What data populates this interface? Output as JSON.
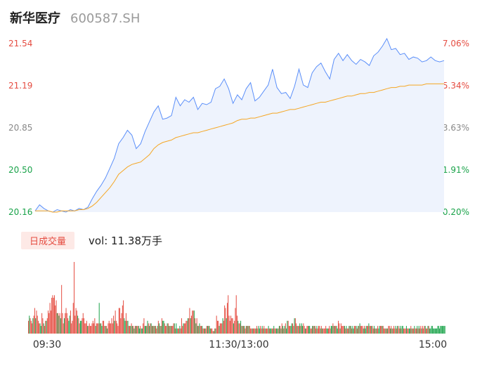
{
  "header": {
    "name": "新华医疗",
    "code": "600587.SH"
  },
  "volume_panel": {
    "tag": "日成交量",
    "label": "vol: 11.38万手"
  },
  "colors": {
    "up": "#e54d42",
    "down": "#1aa34a",
    "price_line": "#5b8ff9",
    "avg_line": "#f5a623",
    "fill": "#eef3fd"
  },
  "chart_data": [
    {
      "type": "line",
      "price_ticks": [
        "21.54",
        "21.19",
        "20.85",
        "20.50",
        "20.16"
      ],
      "pct_ticks": [
        "7.06%",
        "5.34%",
        "3.63%",
        "1.91%",
        "0.20%"
      ],
      "ylim": [
        20.16,
        21.54
      ],
      "x_ticks": [
        "09:30",
        "11:30/13:00",
        "15:00"
      ],
      "series": [
        {
          "values": [
            20.17,
            20.22,
            20.19,
            20.17,
            20.16,
            20.18,
            20.17,
            20.16,
            20.18,
            20.17,
            20.19,
            20.18,
            20.2,
            20.27,
            20.33,
            20.38,
            20.44,
            20.52,
            20.6,
            20.72,
            20.77,
            20.83,
            20.79,
            20.68,
            20.72,
            20.82,
            20.9,
            20.98,
            21.03,
            20.92,
            20.93,
            20.95,
            21.1,
            21.03,
            21.08,
            21.06,
            21.1,
            21.0,
            21.05,
            21.04,
            21.06,
            21.17,
            21.19,
            21.25,
            21.17,
            21.05,
            21.12,
            21.08,
            21.17,
            21.22,
            21.07,
            21.1,
            21.15,
            21.2,
            21.33,
            21.18,
            21.13,
            21.14,
            21.09,
            21.19,
            21.33,
            21.2,
            21.18,
            21.3,
            21.35,
            21.38,
            21.31,
            21.25,
            21.41,
            21.46,
            21.4,
            21.45,
            21.4,
            21.37,
            21.41,
            21.39,
            21.36,
            21.44,
            21.47,
            21.52,
            21.58,
            21.49,
            21.5,
            21.45,
            21.46,
            21.41,
            21.43,
            21.42,
            21.39,
            21.4,
            21.43,
            21.4,
            21.39,
            21.4
          ]
        },
        {
          "values": [
            20.17,
            20.17,
            20.17,
            20.17,
            20.16,
            20.16,
            20.17,
            20.17,
            20.17,
            20.17,
            20.18,
            20.18,
            20.19,
            20.21,
            20.24,
            20.28,
            20.32,
            20.36,
            20.41,
            20.47,
            20.5,
            20.53,
            20.55,
            20.56,
            20.57,
            20.6,
            20.63,
            20.68,
            20.71,
            20.73,
            20.74,
            20.75,
            20.77,
            20.78,
            20.79,
            20.8,
            20.81,
            20.81,
            20.82,
            20.83,
            20.84,
            20.85,
            20.86,
            20.87,
            20.88,
            20.89,
            20.91,
            20.92,
            20.92,
            20.93,
            20.93,
            20.94,
            20.95,
            20.96,
            20.97,
            20.97,
            20.98,
            20.99,
            21.0,
            21.0,
            21.01,
            21.02,
            21.03,
            21.04,
            21.05,
            21.06,
            21.06,
            21.07,
            21.08,
            21.09,
            21.1,
            21.11,
            21.11,
            21.12,
            21.13,
            21.13,
            21.14,
            21.14,
            21.15,
            21.16,
            21.17,
            21.18,
            21.18,
            21.19,
            21.19,
            21.2,
            21.2,
            21.2,
            21.2,
            21.21,
            21.21,
            21.21,
            21.21,
            21.21
          ]
        }
      ]
    },
    {
      "type": "bar",
      "values": [
        5,
        7,
        6,
        5,
        4,
        6,
        7,
        10,
        6,
        9,
        7,
        5,
        4,
        4,
        3,
        8,
        6,
        4,
        3,
        5,
        5,
        6,
        9,
        8,
        12,
        9,
        14,
        15,
        14,
        15,
        11,
        13,
        8,
        8,
        7,
        8,
        6,
        19,
        8,
        4,
        6,
        8,
        10,
        8,
        6,
        5,
        7,
        9,
        4,
        5,
        12,
        28,
        7,
        10,
        9,
        7,
        6,
        4,
        5,
        5,
        6,
        8,
        6,
        4,
        4,
        5,
        3,
        3,
        4,
        3,
        3,
        4,
        5,
        4,
        6,
        3,
        4,
        4,
        4,
        12,
        4,
        4,
        3,
        5,
        5,
        3,
        3,
        3,
        2,
        4,
        5,
        4,
        4,
        6,
        4,
        7,
        5,
        9,
        5,
        4,
        3,
        10,
        10,
        6,
        8,
        11,
        13,
        6,
        5,
        8,
        5,
        5,
        3,
        3,
        3,
        4,
        3,
        3,
        2,
        3,
        3,
        3,
        3,
        3,
        2,
        3,
        2,
        2,
        4,
        6,
        3,
        3,
        3,
        5,
        4,
        3,
        4,
        4,
        3,
        3,
        3,
        3,
        3,
        2,
        3,
        5,
        4,
        3,
        3,
        6,
        5,
        5,
        4,
        3,
        3,
        4,
        4,
        3,
        3,
        3,
        3,
        3,
        4,
        4,
        2,
        4,
        2,
        2,
        2,
        3,
        2,
        6,
        3,
        4,
        4,
        4,
        5,
        5,
        6,
        6,
        10,
        6,
        7,
        9,
        9,
        9,
        6,
        4,
        6,
        3,
        3,
        4,
        3,
        3,
        3,
        2,
        2,
        2,
        2,
        3,
        3,
        3,
        3,
        2,
        2,
        2,
        1,
        1,
        2,
        2,
        7,
        5,
        5,
        3,
        4,
        4,
        4,
        6,
        5,
        11,
        10,
        6,
        12,
        15,
        7,
        5,
        7,
        6,
        6,
        4,
        5,
        10,
        15,
        7,
        5,
        4,
        4,
        5,
        3,
        3,
        3,
        3,
        2,
        3,
        3,
        3,
        3,
        3,
        2,
        2,
        2,
        2,
        2,
        2,
        2,
        3,
        2,
        3,
        2,
        3,
        2,
        3,
        2,
        3,
        2,
        2,
        2,
        2,
        3,
        2,
        2,
        2,
        2,
        2,
        3,
        2,
        2,
        2,
        2,
        2,
        3,
        3,
        2,
        4,
        3,
        2,
        3,
        4,
        2,
        5,
        5,
        3,
        3,
        3,
        4,
        4,
        3,
        6,
        6,
        4,
        3,
        3,
        3,
        4,
        3,
        4,
        3,
        4,
        3,
        2,
        2,
        3,
        3,
        3,
        3,
        2,
        2,
        3,
        3,
        3,
        3,
        2,
        3,
        2,
        3,
        3,
        2,
        3,
        2,
        2,
        2,
        2,
        3,
        2,
        2,
        2,
        3,
        2,
        3,
        3,
        4,
        3,
        3,
        3,
        3,
        2,
        5,
        4,
        2,
        4,
        3,
        3,
        3,
        3,
        2,
        3,
        2,
        2,
        3,
        3,
        3,
        2,
        3,
        2,
        3,
        3,
        3,
        2,
        3,
        3,
        4,
        3,
        3,
        3,
        2,
        3,
        2,
        3,
        3,
        3,
        4,
        3,
        3,
        3,
        3,
        2,
        3,
        2,
        2,
        2,
        3,
        2,
        3,
        3,
        3,
        3,
        3,
        2,
        2,
        2,
        2,
        2,
        3,
        3,
        2,
        3,
        2,
        2,
        3,
        2,
        3,
        2,
        3,
        3,
        2,
        3,
        2,
        3,
        3,
        2,
        2,
        2,
        3,
        2,
        2,
        2,
        2,
        3,
        2,
        2,
        2,
        3,
        2,
        2,
        3,
        2,
        3,
        2,
        3,
        2,
        3,
        2,
        3,
        3,
        2,
        2,
        3,
        3,
        2,
        2,
        3,
        3,
        2,
        2,
        2,
        2,
        2,
        3,
        3,
        2,
        3,
        3,
        3,
        3,
        3,
        3
      ],
      "up": [
        1,
        0,
        1,
        1,
        1,
        0,
        1,
        1,
        0,
        1,
        1,
        1,
        1,
        0,
        0,
        1,
        1,
        0,
        1,
        1,
        0,
        1,
        1,
        1,
        1,
        1,
        1,
        1,
        1,
        1,
        1,
        1,
        0,
        1,
        0,
        1,
        0,
        1,
        1,
        1,
        0,
        1,
        1,
        1,
        1,
        0,
        0,
        1,
        1,
        1,
        1,
        1,
        1,
        1,
        1,
        0,
        1,
        1,
        0,
        0,
        1,
        1,
        1,
        1,
        1,
        1,
        0,
        1,
        1,
        1,
        1,
        1,
        1,
        1,
        1,
        0,
        1,
        1,
        1,
        0,
        1,
        0,
        0,
        1,
        1,
        1,
        0,
        1,
        0,
        1,
        1,
        1,
        1,
        1,
        1,
        1,
        0,
        1,
        1,
        1,
        1,
        1,
        1,
        1,
        1,
        1,
        1,
        0,
        0,
        1,
        1,
        0,
        1,
        1,
        0,
        1,
        0,
        1,
        0,
        1,
        0,
        1,
        1,
        0,
        0,
        1,
        0,
        0,
        1,
        1,
        0,
        0,
        1,
        0,
        1,
        0,
        1,
        0,
        1,
        0,
        1,
        0,
        1,
        1,
        0,
        1,
        0,
        1,
        0,
        1,
        0,
        0,
        1,
        1,
        1,
        0,
        1,
        0,
        1,
        0,
        1,
        1,
        1,
        0,
        1,
        0,
        0,
        1,
        1,
        0,
        1,
        1,
        1,
        0,
        1,
        1,
        1,
        1,
        0,
        1,
        1,
        0,
        1,
        1,
        1,
        0,
        1,
        0,
        1,
        0,
        1,
        0,
        1,
        1,
        0,
        1,
        1,
        0,
        1,
        1,
        0,
        1,
        0,
        0,
        1,
        1,
        1,
        0,
        1,
        0,
        1,
        1,
        1,
        0,
        1,
        1,
        1,
        0,
        1,
        1,
        1,
        0,
        1,
        1,
        1,
        1,
        1,
        1,
        1,
        0,
        1,
        1,
        1,
        1,
        0,
        1,
        1,
        0,
        1,
        0,
        1,
        0,
        1,
        1,
        0,
        1,
        0,
        1,
        1,
        1,
        0,
        1,
        1,
        1,
        0,
        1,
        1,
        0,
        0,
        1,
        1,
        0,
        1,
        1,
        0,
        1,
        1,
        1,
        0,
        1,
        0,
        0,
        1,
        1,
        0,
        1,
        1,
        0,
        0,
        1,
        0,
        1,
        0,
        1,
        0,
        1,
        0,
        1,
        0,
        0,
        1,
        1,
        1,
        0,
        0,
        1,
        1,
        0,
        1,
        1,
        0,
        1,
        1,
        0,
        1,
        0,
        0,
        1,
        1,
        0,
        1,
        1,
        1,
        0,
        0,
        1,
        1,
        0,
        1,
        0,
        1,
        1,
        0,
        1,
        1,
        1,
        0,
        1,
        0,
        1,
        1,
        1,
        1,
        0,
        0,
        1,
        1,
        1,
        0,
        0,
        1,
        0,
        1,
        1,
        0,
        0,
        1,
        1,
        0,
        1,
        1,
        1,
        1,
        0,
        1,
        0,
        1,
        1,
        0,
        1,
        0,
        1,
        0,
        0,
        1,
        1,
        0,
        1,
        0,
        1,
        0,
        1,
        1,
        1,
        0,
        1,
        0,
        0,
        1,
        1,
        0,
        1,
        1,
        0,
        1,
        1,
        0,
        1,
        0,
        1,
        1,
        0,
        0,
        1,
        1,
        0,
        1,
        1,
        1,
        0,
        1,
        0,
        1,
        1,
        0,
        1,
        0,
        1,
        1,
        1,
        0,
        1,
        0,
        1,
        1,
        0,
        1,
        0,
        0,
        1,
        1,
        1,
        0,
        1,
        1,
        0,
        0,
        1,
        0,
        1,
        1,
        0,
        1,
        1,
        0,
        1,
        0,
        1,
        1,
        0,
        1,
        1,
        1,
        0,
        1,
        1,
        0,
        1
      ]
    }
  ]
}
